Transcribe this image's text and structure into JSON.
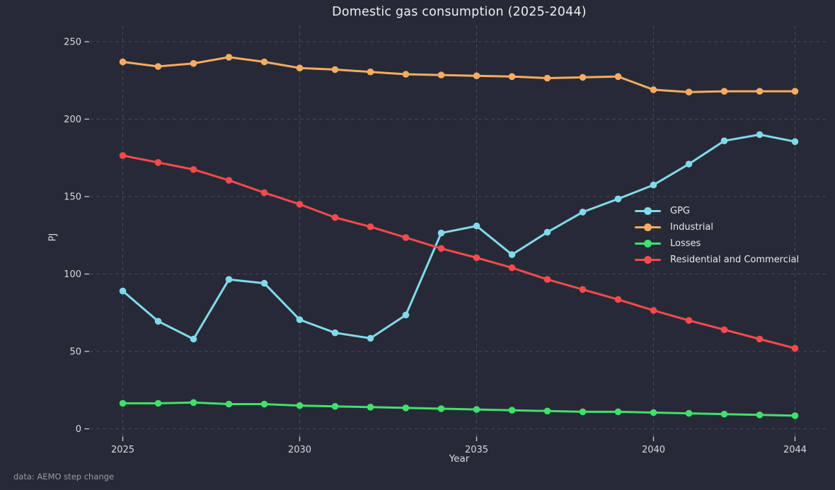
{
  "chart_data": {
    "type": "line",
    "title": "Domestic gas consumption (2025-2044)",
    "xlabel": "Year",
    "ylabel": "PJ",
    "annotation": "data: AEMO step change",
    "x": [
      2025,
      2026,
      2027,
      2028,
      2029,
      2030,
      2031,
      2032,
      2033,
      2034,
      2035,
      2036,
      2037,
      2038,
      2039,
      2040,
      2041,
      2042,
      2043,
      2044
    ],
    "xticks": [
      2025,
      2030,
      2035,
      2040,
      2044
    ],
    "yticks": [
      0,
      50,
      100,
      150,
      200,
      250
    ],
    "ylim": [
      0,
      250
    ],
    "grid": true,
    "grid_style": "dashed",
    "legend_position": "center-right",
    "background_color": "#272a36",
    "grid_color": "#4a4e63",
    "tick_label_color": "#d8dade",
    "series": [
      {
        "name": "GPG",
        "color": "#82d9ec",
        "values": [
          89,
          69.5,
          58,
          96.5,
          94,
          70.5,
          62,
          58.5,
          73.5,
          126.5,
          131,
          112.5,
          127,
          140,
          148.5,
          157.5,
          171,
          186,
          190,
          185.5
        ]
      },
      {
        "name": "Industrial",
        "color": "#f6ac62",
        "values": [
          237,
          234,
          236,
          240,
          237,
          233,
          232,
          230.5,
          229,
          228.5,
          228,
          227.5,
          226.5,
          227,
          227.5,
          219,
          217.5,
          218,
          218,
          218
        ]
      },
      {
        "name": "Losses",
        "color": "#41e06e",
        "values": [
          16.5,
          16.5,
          17,
          16,
          16,
          15,
          14.5,
          14,
          13.5,
          13,
          12.5,
          12,
          11.5,
          11,
          11,
          10.5,
          10,
          9.5,
          9,
          8.5
        ]
      },
      {
        "name": "Residential and Commercial",
        "color": "#f54a4e",
        "values": [
          176.5,
          172,
          167.5,
          160.5,
          152.5,
          145,
          136.5,
          130.5,
          123.5,
          116.5,
          110.5,
          104,
          96.5,
          90,
          83.5,
          76.5,
          70,
          64,
          58,
          52
        ]
      }
    ]
  }
}
